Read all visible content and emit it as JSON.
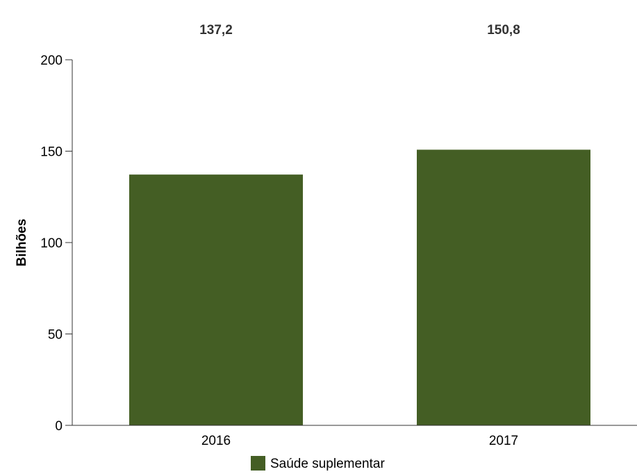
{
  "chart_data": {
    "type": "bar",
    "categories": [
      "2016",
      "2017"
    ],
    "series": [
      {
        "name": "Saúde suplementar",
        "values": [
          137.2,
          150.8
        ],
        "color": "#445e24"
      }
    ],
    "data_labels": [
      "137,2",
      "150,8"
    ],
    "title": "",
    "xlabel": "",
    "ylabel": "Bilhões",
    "ylim": [
      0,
      200
    ],
    "yticks": [
      0,
      50,
      100,
      150,
      200
    ],
    "ytick_labels": [
      "0",
      "50",
      "100",
      "150",
      "200"
    ],
    "grid": false,
    "legend_position": "bottom",
    "data_label_position": "top"
  }
}
